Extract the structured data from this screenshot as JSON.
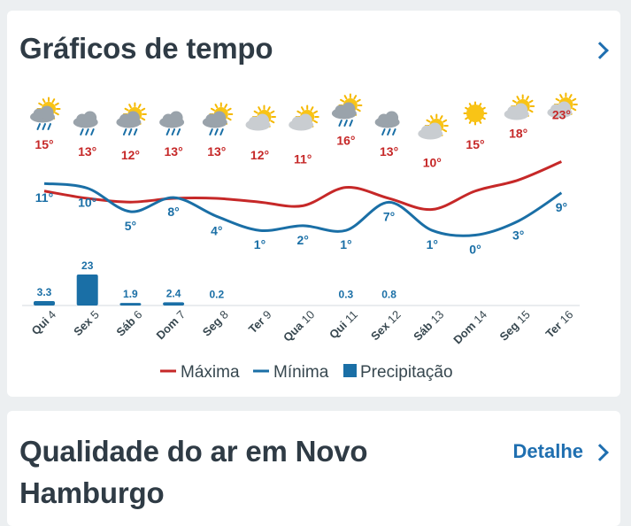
{
  "weather_card": {
    "title": "Gráficos de tempo",
    "chevron_icon": "chevron-right-icon"
  },
  "air_card": {
    "title": "Qualidade do ar em Novo Hamburgo",
    "detail_label": "Detalhe",
    "chevron_icon": "chevron-right-icon"
  },
  "colors": {
    "max": "#c62828",
    "min": "#1a6fa6",
    "precip": "#1a6fa6",
    "link": "#1f6fb0",
    "title": "#2f3b45"
  },
  "chart_data": {
    "type": "line",
    "categories": [
      "Qui 4",
      "Sex 5",
      "Sáb 6",
      "Dom 7",
      "Seg 8",
      "Ter 9",
      "Qua 10",
      "Qui 11",
      "Sex 12",
      "Sáb 13",
      "Dom 14",
      "Seg 15",
      "Ter 16"
    ],
    "series": [
      {
        "name": "Máxima",
        "unit": "°",
        "values": [
          15,
          13,
          12,
          13,
          13,
          12,
          11,
          16,
          13,
          10,
          15,
          18,
          23
        ]
      },
      {
        "name": "Mínima",
        "unit": "°",
        "values": [
          11,
          10,
          5,
          8,
          4,
          1,
          2,
          1,
          7,
          1,
          0,
          3,
          9
        ]
      },
      {
        "name": "Precipitação",
        "type": "bar",
        "values": [
          3.3,
          23,
          1.9,
          2.4,
          0.2,
          null,
          null,
          0.3,
          0.8,
          null,
          null,
          null,
          null
        ]
      }
    ],
    "weather_icons": [
      "sun-cloud-rain-icon",
      "cloud-rain-icon",
      "sun-cloud-rain-icon",
      "cloud-rain-icon",
      "sun-cloud-rain-icon",
      "sun-cloud-icon",
      "sun-cloud-icon",
      "sun-cloud-rain-icon",
      "cloud-rain-icon",
      "sun-cloud-icon",
      "sun-icon",
      "sun-cloud-icon",
      "sun-cloud-icon"
    ],
    "legend": [
      "Máxima",
      "Mínima",
      "Precipitação"
    ],
    "legend_position": "bottom"
  }
}
